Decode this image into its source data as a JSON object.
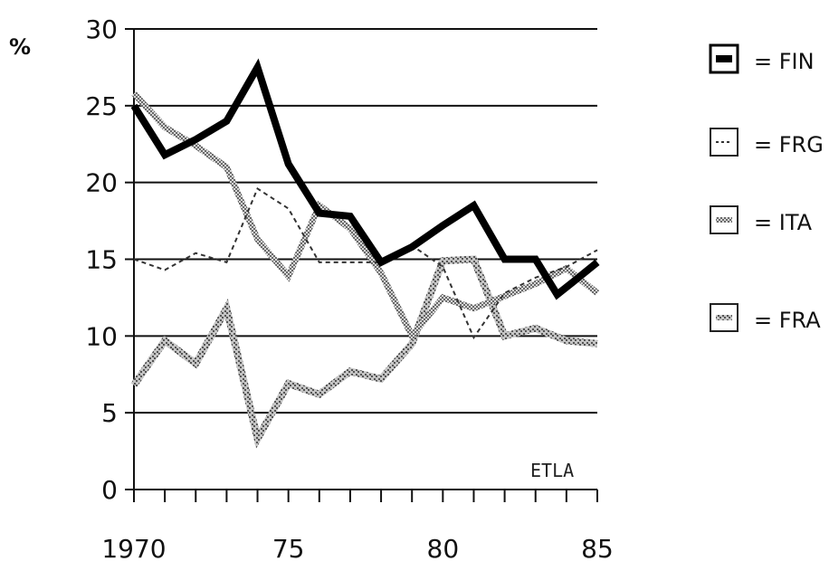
{
  "chart_data": {
    "type": "line",
    "ylabel": "%",
    "xlabel": "",
    "xlim": [
      1970,
      1985
    ],
    "ylim": [
      0,
      30
    ],
    "x_ticks": [
      1970,
      1971,
      1972,
      1973,
      1974,
      1975,
      1976,
      1977,
      1978,
      1979,
      1980,
      1981,
      1982,
      1983,
      1984,
      1985
    ],
    "x_tick_labels": [
      {
        "x": 1970,
        "label": "1970"
      },
      {
        "x": 1975,
        "label": "75"
      },
      {
        "x": 1980,
        "label": "80"
      },
      {
        "x": 1985,
        "label": "85"
      }
    ],
    "y_ticks": [
      0,
      5,
      10,
      15,
      20,
      25,
      30
    ],
    "y_tick_labels": [
      "0",
      "5",
      "10",
      "15",
      "20",
      "25",
      "30"
    ],
    "grid": "horizontal",
    "legend_position": "right",
    "annotation": "ETLA",
    "x": [
      1970,
      1971,
      1972,
      1973,
      1974,
      1975,
      1976,
      1977,
      1978,
      1979,
      1980,
      1981,
      1982,
      1983,
      1984,
      1985
    ],
    "series": [
      {
        "name": "FIN",
        "style": "solid",
        "color": "#000000",
        "x": [
          1970,
          1971,
          1972,
          1973,
          1974,
          1975,
          1976,
          1977,
          1978,
          1979,
          1980,
          1981,
          1982,
          1983,
          1983.7,
          1984.2,
          1985
        ],
        "values": [
          25.0,
          21.8,
          22.8,
          24.0,
          27.5,
          21.2,
          18.0,
          17.8,
          14.8,
          15.8,
          17.2,
          18.5,
          15.0,
          15.0,
          12.7,
          13.5,
          14.8
        ]
      },
      {
        "name": "FRG",
        "style": "dashed",
        "color": "#555555",
        "x": [
          1970,
          1971,
          1972,
          1973,
          1974,
          1975,
          1976,
          1977,
          1978,
          1979,
          1980,
          1981,
          1982,
          1983,
          1984,
          1985
        ],
        "values": [
          15.0,
          14.3,
          15.4,
          14.8,
          19.6,
          18.3,
          14.8,
          14.8,
          14.8,
          15.9,
          14.5,
          9.9,
          12.8,
          13.8,
          14.5,
          15.6
        ]
      },
      {
        "name": "ITA",
        "style": "dotted",
        "color": "#8a8a8a",
        "x": [
          1970,
          1971,
          1972,
          1973,
          1974,
          1975,
          1976,
          1977,
          1978,
          1979,
          1980,
          1981,
          1982,
          1983,
          1984,
          1985
        ],
        "values": [
          25.8,
          23.6,
          22.4,
          21.0,
          16.3,
          13.9,
          18.5,
          17.0,
          14.1,
          10.0,
          12.5,
          11.8,
          12.6,
          13.4,
          14.4,
          12.8
        ]
      },
      {
        "name": "FRA",
        "style": "hatched",
        "color": "#9a9a9a",
        "x": [
          1970,
          1971,
          1972,
          1973,
          1974,
          1975,
          1976,
          1977,
          1978,
          1979,
          1980,
          1981,
          1982,
          1983,
          1984,
          1985
        ],
        "values": [
          6.8,
          9.7,
          8.2,
          11.8,
          3.3,
          6.9,
          6.2,
          7.7,
          7.2,
          9.5,
          14.9,
          15.0,
          10.0,
          10.5,
          9.7,
          9.5
        ]
      }
    ]
  },
  "legend": [
    {
      "label": "= FIN"
    },
    {
      "label": "= FRG"
    },
    {
      "label": "= ITA"
    },
    {
      "label": "= FRA"
    }
  ]
}
